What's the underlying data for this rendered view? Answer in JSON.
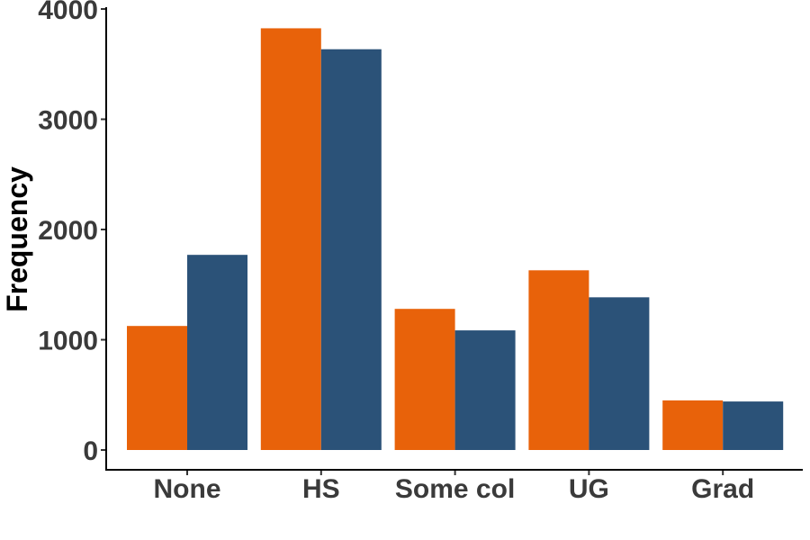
{
  "chart_data": {
    "type": "bar",
    "title": "",
    "xlabel": "",
    "ylabel": "Frequency",
    "categories": [
      "None",
      "HS",
      "Some col",
      "UG",
      "Grad"
    ],
    "series": [
      {
        "values": [
          1125,
          3825,
          1280,
          1630,
          450
        ],
        "color": "#e8620a"
      },
      {
        "values": [
          1770,
          3635,
          1085,
          1385,
          440
        ],
        "color": "#2b5278"
      }
    ],
    "ylim": [
      0,
      4000
    ],
    "yticks": [
      0,
      1000,
      2000,
      3000,
      4000
    ],
    "grid": false,
    "legend": "none"
  }
}
